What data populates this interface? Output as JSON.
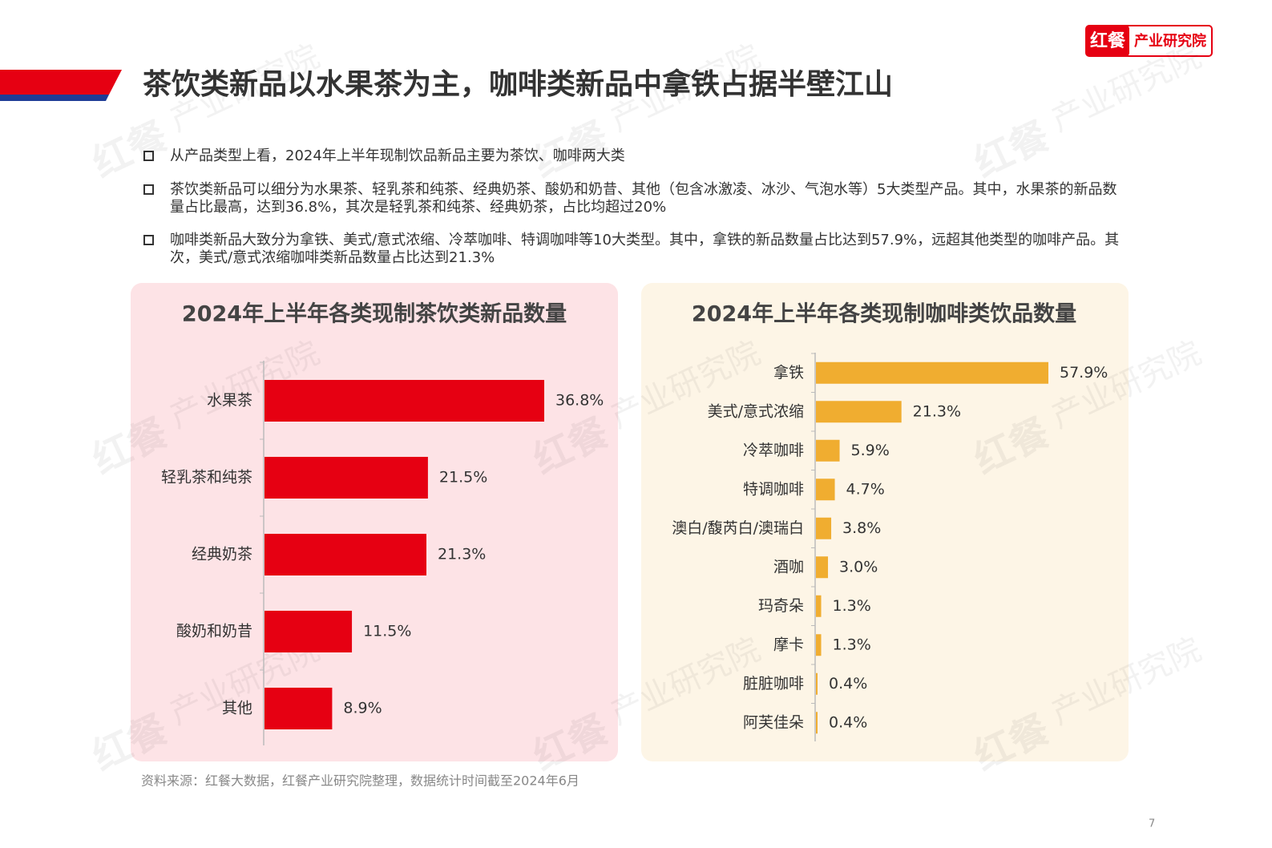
{
  "logo": {
    "mark": "红餐",
    "text": "产业研究院"
  },
  "header": {
    "title": "茶饮类新品以水果茶为主，咖啡类新品中拿铁占据半壁江山"
  },
  "bullets": [
    "从产品类型上看，2024年上半年现制饮品新品主要为茶饮、咖啡两大类",
    "茶饮类新品可以细分为水果茶、轻乳茶和纯茶、经典奶茶、酸奶和奶昔、其他（包含冰激凌、冰沙、气泡水等）5大类型产品。其中，水果茶的新品数量占比最高，达到36.8%，其次是轻乳茶和纯茶、经典奶茶，占比均超过20%",
    "咖啡类新品大致分为拿铁、美式/意式浓缩、冷萃咖啡、特调咖啡等10大类型。其中，拿铁的新品数量占比达到57.9%，远超其他类型的咖啡产品。其次，美式/意式浓缩咖啡类新品数量占比达到21.3%"
  ],
  "chart_data": [
    {
      "type": "bar",
      "orientation": "horizontal",
      "title": "2024年上半年各类现制茶饮类新品数量",
      "categories": [
        "水果茶",
        "轻乳茶和纯茶",
        "经典奶茶",
        "酸奶和奶昔",
        "其他"
      ],
      "values": [
        36.8,
        21.5,
        21.3,
        11.5,
        8.9
      ],
      "value_labels": [
        "36.8%",
        "21.5%",
        "21.3%",
        "11.5%",
        "8.9%"
      ],
      "color": "#e60012"
    },
    {
      "type": "bar",
      "orientation": "horizontal",
      "title": "2024年上半年各类现制咖啡类饮品数量",
      "categories": [
        "拿铁",
        "美式/意式浓缩",
        "冷萃咖啡",
        "特调咖啡",
        "澳白/馥芮白/澳瑞白",
        "酒咖",
        "玛奇朵",
        "摩卡",
        "脏脏咖啡",
        "阿芙佳朵"
      ],
      "values": [
        57.9,
        21.3,
        5.9,
        4.7,
        3.8,
        3.0,
        1.3,
        1.3,
        0.4,
        0.4
      ],
      "value_labels": [
        "57.9%",
        "21.3%",
        "5.9%",
        "4.7%",
        "3.8%",
        "3.0%",
        "1.3%",
        "1.3%",
        "0.4%",
        "0.4%"
      ],
      "color": "#f0ad30"
    }
  ],
  "source": "资料来源：红餐大数据，红餐产业研究院整理，数据统计时间截至2024年6月",
  "page_number": "7"
}
